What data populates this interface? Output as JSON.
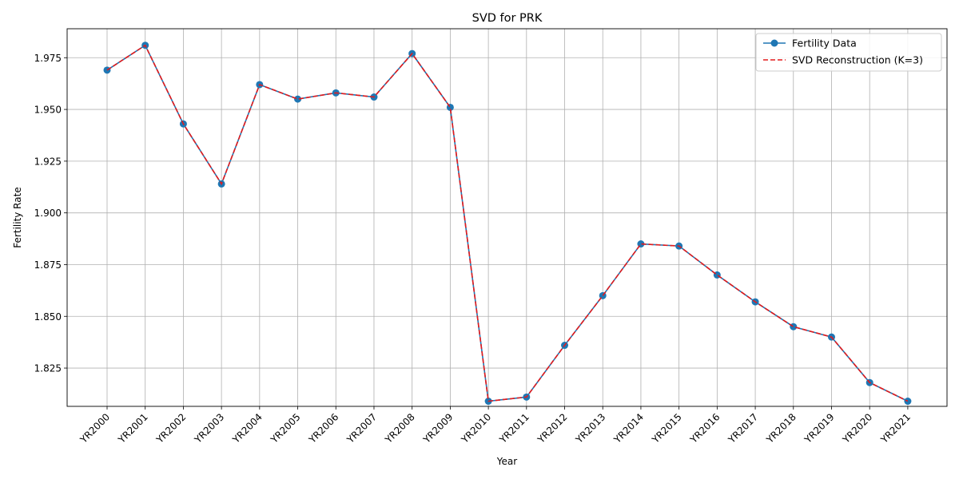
{
  "chart_data": {
    "type": "line",
    "title": "SVD for PRK",
    "xlabel": "Year",
    "ylabel": "Fertility Rate",
    "categories": [
      "YR2000",
      "YR2001",
      "YR2002",
      "YR2003",
      "YR2004",
      "YR2005",
      "YR2006",
      "YR2007",
      "YR2008",
      "YR2009",
      "YR2010",
      "YR2011",
      "YR2012",
      "YR2013",
      "YR2014",
      "YR2015",
      "YR2016",
      "YR2017",
      "YR2018",
      "YR2019",
      "YR2020",
      "YR2021"
    ],
    "ylim": [
      1.8065,
      1.989
    ],
    "yticks": [
      1.825,
      1.85,
      1.875,
      1.9,
      1.925,
      1.95,
      1.975
    ],
    "ytick_labels": [
      "1.825",
      "1.850",
      "1.875",
      "1.900",
      "1.925",
      "1.950",
      "1.975"
    ],
    "grid": true,
    "legend_position": "top-right",
    "series": [
      {
        "name": "Fertility Data",
        "color": "#1f77b4",
        "style": "solid-with-circle-markers",
        "values": [
          1.969,
          1.981,
          1.943,
          1.914,
          1.962,
          1.955,
          1.958,
          1.956,
          1.977,
          1.951,
          1.809,
          1.811,
          1.836,
          1.86,
          1.885,
          1.884,
          1.87,
          1.857,
          1.845,
          1.84,
          1.818,
          1.809
        ]
      },
      {
        "name": "SVD Reconstruction (K=3)",
        "color": "#e31a1c",
        "style": "dashed",
        "values": [
          1.969,
          1.981,
          1.943,
          1.914,
          1.962,
          1.955,
          1.958,
          1.956,
          1.977,
          1.951,
          1.809,
          1.811,
          1.836,
          1.86,
          1.885,
          1.884,
          1.87,
          1.857,
          1.845,
          1.84,
          1.818,
          1.809
        ]
      }
    ]
  }
}
